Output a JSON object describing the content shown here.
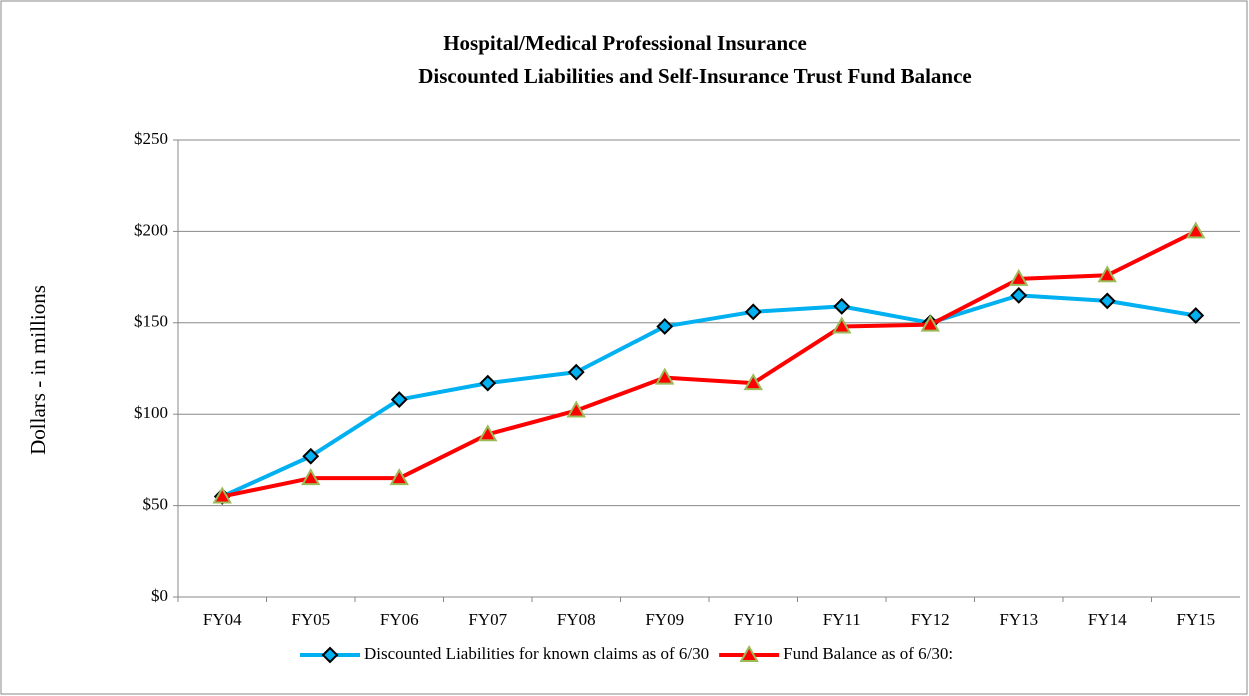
{
  "chart_data": {
    "type": "line",
    "title": [
      "Hospital/Medical Professional Insurance",
      "Discounted Liabilities  and Self-Insurance Trust Fund Balance"
    ],
    "y_label": "Dollars - in millions",
    "categories": [
      "FY04",
      "FY05",
      "FY06",
      "FY07",
      "FY08",
      "FY09",
      "FY10",
      "FY11",
      "FY12",
      "FY13",
      "FY14",
      "FY15"
    ],
    "series": [
      {
        "name": "Discounted Liabilities for known claims as of 6/30",
        "color": "#00b0f0",
        "marker": "diamond",
        "values": [
          55,
          77,
          108,
          117,
          123,
          148,
          156,
          159,
          150,
          165,
          162,
          154
        ]
      },
      {
        "name": "Fund Balance as of 6/30:",
        "color": "#ff0000",
        "marker": "triangle",
        "values": [
          55,
          65,
          65,
          89,
          102,
          120,
          117,
          148,
          149,
          174,
          176,
          200
        ]
      }
    ],
    "ylim": [
      0,
      250
    ],
    "yticks": [
      {
        "value": 0,
        "label": "$0"
      },
      {
        "value": 50,
        "label": "$50"
      },
      {
        "value": 100,
        "label": "$100"
      },
      {
        "value": 150,
        "label": "$150"
      },
      {
        "value": 200,
        "label": "$200"
      },
      {
        "value": 250,
        "label": "$250"
      }
    ],
    "grid": true,
    "legend": "bottom"
  }
}
